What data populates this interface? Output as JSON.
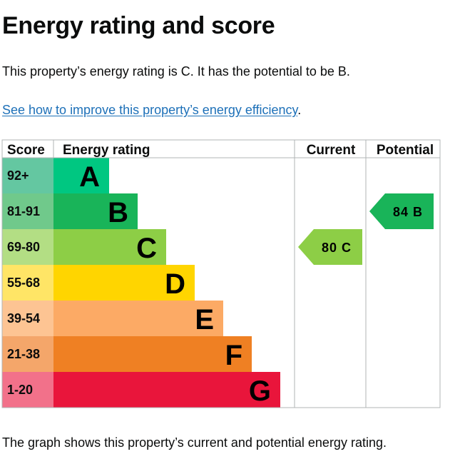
{
  "heading": "Energy rating and score",
  "summary": "This property’s energy rating is C. It has the potential to be B.",
  "link_text": "See how to improve this property’s energy efficiency",
  "link_suffix": ".",
  "caption": "The graph shows this property’s current and potential energy rating.",
  "chart_data": {
    "type": "bar",
    "columns": [
      "Score",
      "Energy rating",
      "Current",
      "Potential"
    ],
    "bands": [
      {
        "range": "92+",
        "letter": "A",
        "color": "#00c781",
        "range_bg": "#64c7a1",
        "letter_color": "#000000"
      },
      {
        "range": "81-91",
        "letter": "B",
        "color": "#19b459",
        "range_bg": "#70c98b",
        "letter_color": "#000000"
      },
      {
        "range": "69-80",
        "letter": "C",
        "color": "#8dce46",
        "range_bg": "#b3de84",
        "letter_color": "#000000"
      },
      {
        "range": "55-68",
        "letter": "D",
        "color": "#ffd500",
        "range_bg": "#ffe566",
        "letter_color": "#000000"
      },
      {
        "range": "39-54",
        "letter": "E",
        "color": "#fcaa65",
        "range_bg": "#fdc493",
        "letter_color": "#000000"
      },
      {
        "range": "21-38",
        "letter": "F",
        "color": "#ef8023",
        "range_bg": "#f4a66a",
        "letter_color": "#000000"
      },
      {
        "range": "1-20",
        "letter": "G",
        "color": "#e9153b",
        "range_bg": "#f2718a",
        "letter_color": "#000000"
      }
    ],
    "current": {
      "score": 80,
      "letter": "C",
      "label": "80 C",
      "color": "#8dce46",
      "text_color": "#000000"
    },
    "potential": {
      "score": 84,
      "letter": "B",
      "label": "84 B",
      "color": "#19b459",
      "text_color": "#000000"
    }
  }
}
